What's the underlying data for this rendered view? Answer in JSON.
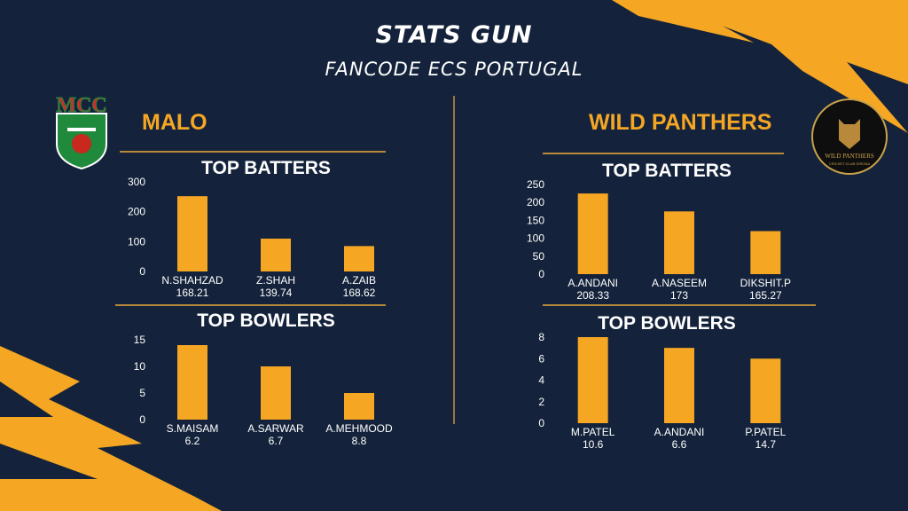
{
  "header": {
    "title": "STATS GUN",
    "subtitle": "FANCODE ECS PORTUGAL"
  },
  "teams": {
    "left": {
      "name": "MALO",
      "logo_text": "MCC"
    },
    "right": {
      "name": "WILD PANTHERS",
      "logo_text": "WILD PANTHERS",
      "logo_subtext": "CRICKET CLUB GIRONA"
    }
  },
  "sections": {
    "batters": "TOP BATTERS",
    "bowlers": "TOP BOWLERS"
  },
  "colors": {
    "accent": "#f5a623",
    "background": "#14233b",
    "bar": "#f5a623"
  },
  "chart_data": [
    {
      "type": "bar",
      "title": "TOP BATTERS",
      "team": "MALO",
      "categories": [
        "N.SHAHZAD",
        "Z.SHAH",
        "A.ZAIB"
      ],
      "sublabels": [
        "168.21",
        "139.74",
        "168.62"
      ],
      "values": [
        252,
        110,
        85
      ],
      "ylim": [
        0,
        300
      ],
      "yticks": [
        0,
        100,
        200,
        300
      ]
    },
    {
      "type": "bar",
      "title": "TOP BOWLERS",
      "team": "MALO",
      "categories": [
        "S.MAISAM",
        "A.SARWAR",
        "A.MEHMOOD"
      ],
      "sublabels": [
        "6.2",
        "6.7",
        "8.8"
      ],
      "values": [
        14,
        10,
        5
      ],
      "ylim": [
        0,
        15
      ],
      "yticks": [
        0,
        5,
        10,
        15
      ]
    },
    {
      "type": "bar",
      "title": "TOP BATTERS",
      "team": "WILD PANTHERS",
      "categories": [
        "A.ANDANI",
        "A.NASEEM",
        "DIKSHIT.P"
      ],
      "sublabels": [
        "208.33",
        "173",
        "165.27"
      ],
      "values": [
        225,
        175,
        120
      ],
      "ylim": [
        0,
        250
      ],
      "yticks": [
        0,
        50,
        100,
        150,
        200,
        250
      ]
    },
    {
      "type": "bar",
      "title": "TOP BOWLERS",
      "team": "WILD PANTHERS",
      "categories": [
        "M.PATEL",
        "A.ANDANI",
        "P.PATEL"
      ],
      "sublabels": [
        "10.6",
        "6.6",
        "14.7"
      ],
      "values": [
        8,
        7,
        6
      ],
      "ylim": [
        0,
        8
      ],
      "yticks": [
        0,
        2,
        4,
        6,
        8
      ]
    }
  ]
}
